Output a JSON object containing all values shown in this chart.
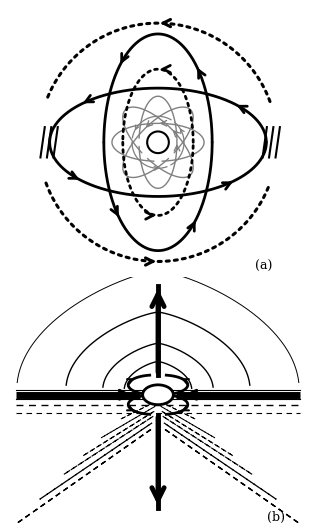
{
  "fig_width": 3.16,
  "fig_height": 5.27,
  "dpi": 100,
  "bg_color": "#ffffff",
  "label_a": "(a)",
  "label_b": "(b)"
}
